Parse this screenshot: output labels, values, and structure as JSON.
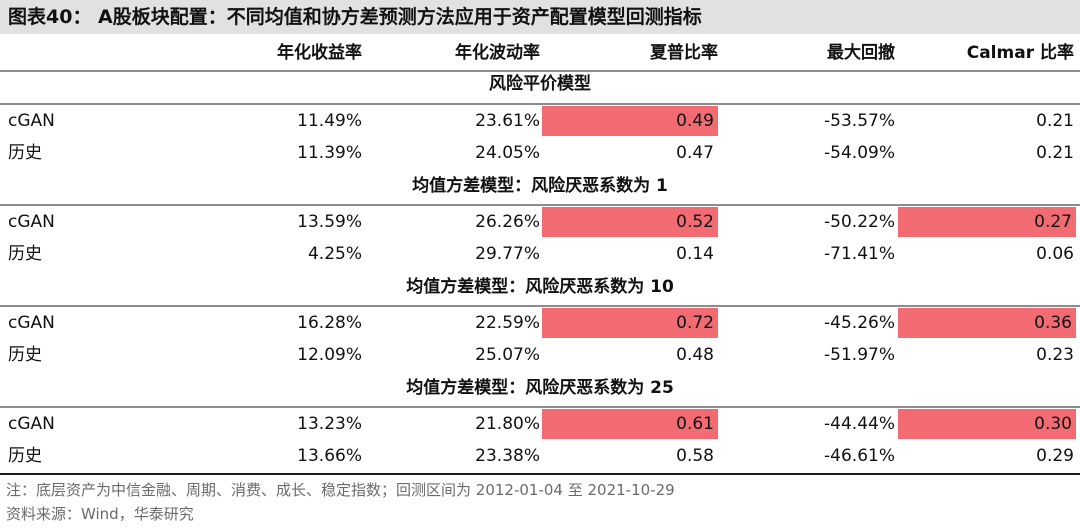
{
  "title": "图表40：  A股板块配置：不同均值和协方差预测方法应用于资产配置模型回测指标",
  "headers": [
    "年化收益率",
    "年化波动率",
    "夏普比率",
    "最大回撤",
    "Calmar 比率"
  ],
  "highlight_color": "#f26b72",
  "sections": [
    {
      "title": "风险平价模型",
      "rows": [
        {
          "label": "cGAN",
          "values": [
            "11.49%",
            "23.61%",
            "0.49",
            "-53.57%",
            "0.21"
          ]
        },
        {
          "label": "历史",
          "values": [
            "11.39%",
            "24.05%",
            "0.47",
            "-54.09%",
            "0.21"
          ]
        }
      ]
    },
    {
      "title": "均值方差模型：风险厌恶系数为 1",
      "rows": [
        {
          "label": "cGAN",
          "values": [
            "13.59%",
            "26.26%",
            "0.52",
            "-50.22%",
            "0.27"
          ]
        },
        {
          "label": "历史",
          "values": [
            "4.25%",
            "29.77%",
            "0.14",
            "-71.41%",
            "0.06"
          ]
        }
      ]
    },
    {
      "title": "均值方差模型：风险厌恶系数为 10",
      "rows": [
        {
          "label": "cGAN",
          "values": [
            "16.28%",
            "22.59%",
            "0.72",
            "-45.26%",
            "0.36"
          ]
        },
        {
          "label": "历史",
          "values": [
            "12.09%",
            "25.07%",
            "0.48",
            "-51.97%",
            "0.23"
          ]
        }
      ]
    },
    {
      "title": "均值方差模型：风险厌恶系数为 25",
      "rows": [
        {
          "label": "cGAN",
          "values": [
            "13.23%",
            "21.80%",
            "0.61",
            "-44.44%",
            "0.30"
          ]
        },
        {
          "label": "历史",
          "values": [
            "13.66%",
            "23.38%",
            "0.58",
            "-46.61%",
            "0.29"
          ]
        }
      ]
    }
  ],
  "note": "注：底层资产为中信金融、周期、消费、成长、稳定指数；回测区间为 2012-01-04 至 2021-10-29",
  "source": "资料来源：Wind，华泰研究"
}
